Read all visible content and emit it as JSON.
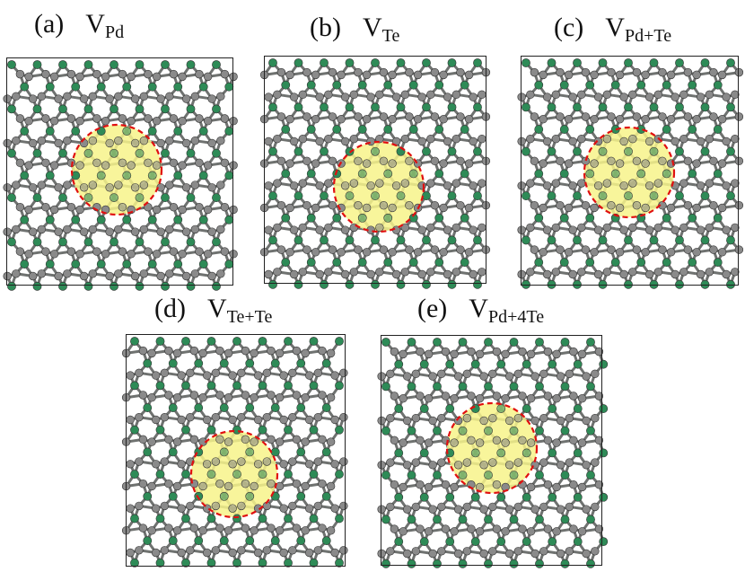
{
  "colors": {
    "pd_atom": "#2e8b57",
    "te_atom": "#8a8a8a",
    "bond": "#6f7270",
    "highlight": "#f7f38a",
    "circle": "#e01010",
    "frame": "#222222"
  },
  "panels": [
    {
      "letter": "(a)",
      "symbol": "V",
      "subscript": "Pd"
    },
    {
      "letter": "(b)",
      "symbol": "V",
      "subscript": "Te"
    },
    {
      "letter": "(c)",
      "symbol": "V",
      "subscript": "Pd+Te"
    },
    {
      "letter": "(d)",
      "symbol": "V",
      "subscript": "Te+Te"
    },
    {
      "letter": "(e)",
      "symbol": "V",
      "subscript": "Pd+4Te"
    }
  ]
}
